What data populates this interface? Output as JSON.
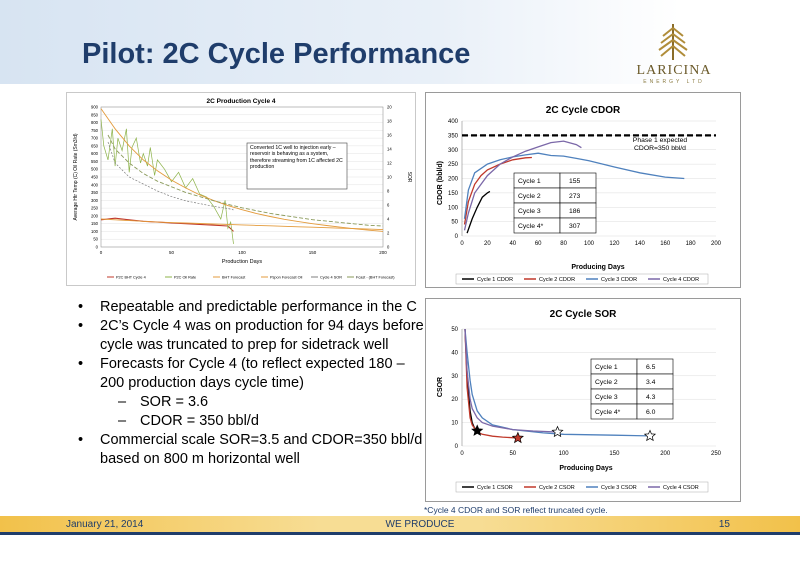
{
  "slide": {
    "title": "Pilot: 2C Cycle Performance",
    "logo_text": "LARICINA",
    "logo_subtext": "ENERGY LTD",
    "bullets": [
      {
        "level": 1,
        "text": "Repeatable and predictable performance in the C"
      },
      {
        "level": 1,
        "text": "2C’s Cycle 4 was on production for 94 days before cycle was truncated to prep for sidetrack well"
      },
      {
        "level": 1,
        "text": "Forecasts for Cycle 4 (to reflect expected 180 – 200 production days cycle time)"
      },
      {
        "level": 2,
        "text": "SOR = 3.6"
      },
      {
        "level": 2,
        "text": "CDOR = 350 bbl/d"
      },
      {
        "level": 1,
        "text": "Commercial scale SOR=3.5 and CDOR=350 bbl/d based on 800 m horizontal well"
      }
    ],
    "footnote": "*Cycle 4 CDOR and SOR reflect truncated cycle.",
    "footer": {
      "date": "January 21, 2014",
      "center": "WE PRODUCE",
      "page": "15"
    },
    "colors": {
      "title": "#1f3d6b",
      "footer_gold": "#f2c14a",
      "cycle1": "#000000",
      "cycle2": "#c0392b",
      "cycle3": "#4f81bd",
      "cycle4": "#7b68a8",
      "accent_green": "#8db34a",
      "accent_orange": "#e39b3c"
    }
  },
  "chart_data": [
    {
      "type": "line",
      "title": "2C Production Cycle 4",
      "xlabel": "Production Days",
      "ylabel_left": "Average Htr Temp (C)\nOil Rate (Sm3/d)",
      "ylabel_right": "SOR",
      "xlim": [
        0,
        200
      ],
      "ylim_left": [
        0,
        900
      ],
      "ylim_right": [
        0,
        20
      ],
      "x_ticks": [
        "0",
        "50",
        "100",
        "150",
        "200"
      ],
      "y_ticks_left": [
        "0",
        "50",
        "100",
        "150",
        "200",
        "250",
        "300",
        "350",
        "400",
        "450",
        "500",
        "550",
        "600",
        "650",
        "700",
        "750",
        "800",
        "850",
        "900"
      ],
      "y_ticks_right": [
        "0",
        "2",
        "4",
        "6",
        "8",
        "10",
        "12",
        "14",
        "16",
        "18",
        "20"
      ],
      "annotation": "Converted 1C well to injection early – reservoir is behaving as a system, therefore streaming from 1C affected 2C production",
      "legend": [
        "P2C BHT Cycle 4",
        "P2C Oil Rate",
        "BHT Forecast",
        "Pspon Forecast Oil",
        "Cycle 4 SOR",
        "Fcast - (BHT Forecast)"
      ],
      "series": [
        {
          "name": "P2C BHT Cycle 4",
          "color": "#c0392b",
          "x": [
            0,
            10,
            20,
            30,
            40,
            50,
            60,
            70,
            80,
            90,
            94
          ],
          "y": [
            175,
            185,
            175,
            165,
            160,
            155,
            150,
            145,
            140,
            135,
            100
          ]
        },
        {
          "name": "P2C Oil Rate",
          "color": "#8db34a",
          "x": [
            0,
            2,
            5,
            8,
            10,
            12,
            15,
            18,
            20,
            22,
            25,
            28,
            30,
            33,
            35,
            38,
            40,
            45,
            50,
            55,
            60,
            65,
            70,
            75,
            80,
            85,
            88,
            90,
            92,
            94
          ],
          "y": [
            820,
            650,
            560,
            760,
            520,
            700,
            620,
            760,
            480,
            640,
            700,
            540,
            600,
            520,
            640,
            460,
            560,
            500,
            420,
            480,
            380,
            440,
            340,
            320,
            260,
            180,
            300,
            120,
            160,
            20
          ]
        },
        {
          "name": "BHT Forecast",
          "color": "#e39b3c",
          "x": [
            0,
            10,
            20,
            30,
            40,
            50,
            60,
            70,
            80,
            90,
            100,
            110,
            120,
            130,
            140,
            150,
            160,
            170,
            180,
            190,
            200
          ],
          "y": [
            180,
            175,
            170,
            165,
            160,
            157,
            154,
            151,
            148,
            145,
            142,
            139,
            136,
            133,
            130,
            127,
            124,
            121,
            118,
            115,
            112
          ]
        },
        {
          "name": "Pspon Forecast Oil",
          "color": "#e39b3c",
          "x": [
            0,
            10,
            20,
            30,
            40,
            50,
            60,
            70,
            80,
            90,
            100,
            110,
            120,
            130,
            140,
            150,
            160,
            170,
            180,
            190,
            200
          ],
          "y": [
            890,
            760,
            650,
            560,
            490,
            430,
            380,
            335,
            298,
            266,
            240,
            216,
            196,
            178,
            163,
            150,
            138,
            127,
            117,
            108,
            100
          ]
        },
        {
          "name": "Cycle 4 SOR",
          "color": "#7f7f7f",
          "x": [
            5,
            10,
            20,
            30,
            40,
            50,
            60,
            70,
            80,
            90,
            94
          ],
          "y": [
            15,
            12,
            10,
            9,
            8,
            7.2,
            6.6,
            6.2,
            5.8,
            5.5,
            5.3
          ]
        },
        {
          "name": "Fcast - (BHT Forecast)",
          "color": "#8a9a5a",
          "x": [
            5,
            10,
            20,
            30,
            40,
            50,
            60,
            70,
            80,
            90,
            100,
            110,
            120,
            130,
            140,
            150,
            160,
            170,
            180,
            190,
            200
          ],
          "y": [
            16,
            14,
            12,
            10.5,
            9.4,
            8.6,
            7.8,
            7.2,
            6.6,
            6.1,
            5.6,
            5.2,
            4.8,
            4.5,
            4.2,
            3.9,
            3.7,
            3.5,
            3.3,
            3.1,
            3.0
          ]
        }
      ]
    },
    {
      "type": "line",
      "title": "2C Cycle CDOR",
      "xlabel": "Producing Days",
      "ylabel": "CDOR (bbl/d)",
      "xlim": [
        0,
        200
      ],
      "ylim": [
        0,
        400
      ],
      "x_ticks": [
        "0",
        "20",
        "40",
        "60",
        "80",
        "100",
        "120",
        "140",
        "160",
        "180",
        "200"
      ],
      "y_ticks": [
        "0",
        "50",
        "100",
        "150",
        "200",
        "250",
        "300",
        "350",
        "400"
      ],
      "reference_line": {
        "y": 350,
        "label": "Phase 1 expected CDOR=350 bbl/d"
      },
      "table": [
        [
          "Cycle 1",
          "155"
        ],
        [
          "Cycle 2",
          "273"
        ],
        [
          "Cycle 3",
          "186"
        ],
        [
          "Cycle 4*",
          "307"
        ]
      ],
      "legend": [
        "Cycle 1 CDOR",
        "Cycle 2 CDOR",
        "Cycle 3 CDOR",
        "Cycle 4 CDOR"
      ],
      "series": [
        {
          "name": "Cycle 1 CDOR",
          "color": "#000000",
          "x": [
            4,
            8,
            12,
            16,
            20,
            22
          ],
          "y": [
            10,
            60,
            100,
            135,
            150,
            155
          ]
        },
        {
          "name": "Cycle 2 CDOR",
          "color": "#c0392b",
          "x": [
            2,
            5,
            10,
            15,
            20,
            30,
            40,
            50,
            55
          ],
          "y": [
            40,
            120,
            180,
            210,
            230,
            250,
            265,
            272,
            273
          ]
        },
        {
          "name": "Cycle 3 CDOR",
          "color": "#4f81bd",
          "x": [
            2,
            5,
            10,
            20,
            30,
            40,
            50,
            60,
            70,
            80,
            90,
            100,
            120,
            140,
            160,
            175
          ],
          "y": [
            60,
            160,
            220,
            250,
            265,
            275,
            282,
            288,
            280,
            278,
            270,
            262,
            240,
            220,
            205,
            200
          ]
        },
        {
          "name": "Cycle 4 CDOR",
          "color": "#7b68a8",
          "x": [
            2,
            5,
            10,
            20,
            30,
            40,
            50,
            60,
            70,
            80,
            90,
            94
          ],
          "y": [
            20,
            80,
            150,
            210,
            250,
            275,
            295,
            310,
            325,
            330,
            318,
            307
          ]
        }
      ]
    },
    {
      "type": "line",
      "title": "2C Cycle SOR",
      "xlabel": "Producing Days",
      "ylabel": "CSOR",
      "xlim": [
        0,
        250
      ],
      "ylim": [
        0,
        50
      ],
      "x_ticks": [
        "0",
        "50",
        "100",
        "150",
        "200",
        "250"
      ],
      "y_ticks": [
        "0",
        "10",
        "20",
        "30",
        "40",
        "50"
      ],
      "table": [
        [
          "Cycle 1",
          "6.5"
        ],
        [
          "Cycle 2",
          "3.4"
        ],
        [
          "Cycle 3",
          "4.3"
        ],
        [
          "Cycle 4*",
          "6.0"
        ]
      ],
      "legend": [
        "Cycle 1 CSOR",
        "Cycle 2 CSOR",
        "Cycle 3 CSOR",
        "Cycle 4 CSOR"
      ],
      "markers": [
        {
          "x": 15,
          "y": 6.5,
          "color": "#000000"
        },
        {
          "x": 55,
          "y": 3.4,
          "color": "#c0392b"
        },
        {
          "x": 185,
          "y": 4.3,
          "color": "#4f81bd"
        },
        {
          "x": 94,
          "y": 6.0,
          "color": "#7b68a8"
        }
      ],
      "series": [
        {
          "name": "Cycle 1 CSOR",
          "color": "#000000",
          "x": [
            3,
            5,
            8,
            10,
            12,
            15
          ],
          "y": [
            50,
            30,
            15,
            10,
            8,
            6.5
          ]
        },
        {
          "name": "Cycle 2 CSOR",
          "color": "#c0392b",
          "x": [
            3,
            5,
            8,
            10,
            15,
            20,
            30,
            40,
            55
          ],
          "y": [
            50,
            25,
            12,
            9,
            6,
            5,
            4.2,
            3.8,
            3.4
          ]
        },
        {
          "name": "Cycle 3 CSOR",
          "color": "#4f81bd",
          "x": [
            3,
            5,
            8,
            10,
            15,
            20,
            30,
            50,
            80,
            100,
            150,
            185
          ],
          "y": [
            50,
            40,
            28,
            22,
            15,
            12,
            9,
            7,
            5.6,
            5,
            4.6,
            4.3
          ]
        },
        {
          "name": "Cycle 4 CSOR",
          "color": "#7b68a8",
          "x": [
            3,
            5,
            8,
            10,
            15,
            20,
            30,
            50,
            70,
            94
          ],
          "y": [
            50,
            32,
            20,
            16,
            12,
            10,
            8.5,
            7,
            6.4,
            6.0
          ]
        }
      ]
    }
  ]
}
